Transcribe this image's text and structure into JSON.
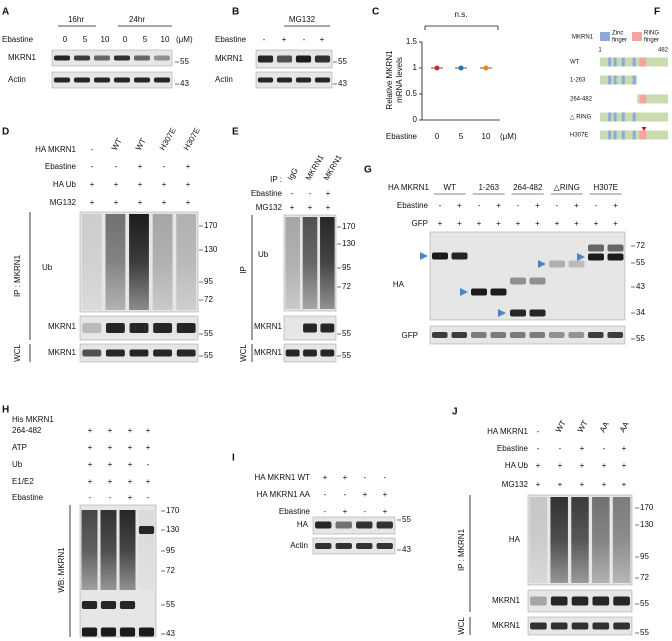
{
  "chart_data": {
    "type": "scatter",
    "letter": "C",
    "annotation": "n.s.",
    "y_label": [
      "Relative MKRN1",
      "mRNA levels"
    ],
    "x_label": "Ebastine",
    "x_unit": "(μM)",
    "categories": [
      "0",
      "5",
      "10"
    ],
    "values": [
      1,
      1,
      1
    ],
    "colors": [
      "#d62728",
      "#1f77b4",
      "#ff7f0e"
    ],
    "ylim": [
      0,
      1.5
    ],
    "yticks": [
      0,
      0.5,
      1,
      1.5
    ]
  },
  "panels": {
    "A": {
      "letter": "A",
      "groups": [
        "16hr",
        "24hr"
      ],
      "rows": [
        {
          "label": "Ebastine",
          "cells": [
            "0",
            "5",
            "10",
            "0",
            "5",
            "10"
          ]
        }
      ],
      "unit": "(μM)",
      "blots": [
        "MKRN1",
        "Actin"
      ],
      "markers": [
        "55",
        "43"
      ]
    },
    "B": {
      "letter": "B",
      "group": "MG132",
      "rows": [
        {
          "label": "Ebastine",
          "cells": [
            "-",
            "+",
            "-",
            "+"
          ]
        }
      ],
      "blots": [
        "MKRN1",
        "Actin"
      ],
      "markers": [
        "55",
        "43"
      ]
    },
    "D": {
      "letter": "D",
      "rows": [
        {
          "label": "HA MKRN1",
          "cells": [
            "-",
            "WT",
            "WT",
            "H307E",
            "H307E"
          ]
        },
        {
          "label": "Ebastine",
          "cells": [
            "-",
            "-",
            "+",
            "-",
            "+"
          ]
        },
        {
          "label": "HA Ub",
          "cells": [
            "+",
            "+",
            "+",
            "+",
            "+"
          ]
        },
        {
          "label": "MG132",
          "cells": [
            "+",
            "+",
            "+",
            "+",
            "+"
          ]
        }
      ],
      "blots": [
        "Ub",
        "MKRN1",
        "MKRN1"
      ],
      "sides": [
        "IP : MKRN1",
        "WCL"
      ],
      "markers": [
        "170",
        "130",
        "95",
        "72",
        "55",
        "55"
      ]
    },
    "E": {
      "letter": "E",
      "rows": [
        {
          "label": "IP :",
          "cells": [
            "IgG",
            "MKRN1",
            "MKRN1"
          ]
        },
        {
          "label": "Ebastine",
          "cells": [
            "-",
            "-",
            "+"
          ]
        },
        {
          "label": "MG132",
          "cells": [
            "+",
            "+",
            "+"
          ]
        }
      ],
      "blots": [
        "Ub",
        "MKRN1",
        "MKRN1"
      ],
      "sides": [
        "IP",
        "WCL"
      ],
      "markers": [
        "170",
        "130",
        "95",
        "72",
        "55",
        "55"
      ]
    },
    "F": {
      "letter": "F",
      "protein": "MKRN1",
      "legend": [
        [
          "Zinc",
          "finger"
        ],
        [
          "RING",
          "finger"
        ]
      ],
      "start": "1",
      "end": "482",
      "constructs": [
        "WT",
        "1-263",
        "264-482",
        "△ RING",
        "H307E"
      ]
    },
    "G": {
      "letter": "G",
      "header": "HA MKRN1",
      "groups": [
        "WT",
        "1-263",
        "264-482",
        "△RING",
        "H307E"
      ],
      "rows": [
        {
          "label": "Ebastine",
          "cells": [
            "-",
            "+",
            "-",
            "+",
            "-",
            "+",
            "-",
            "+",
            "-",
            "+"
          ]
        },
        {
          "label": "GFP",
          "cells": [
            "+",
            "+",
            "+",
            "+",
            "+",
            "+",
            "+",
            "+",
            "+",
            "+"
          ]
        }
      ],
      "blots": [
        "HA",
        "GFP"
      ],
      "markers": [
        "72",
        "55",
        "43",
        "34",
        "55"
      ]
    },
    "H": {
      "letter": "H",
      "protein": "His MKRN1",
      "rows": [
        {
          "label": "264-482",
          "cells": [
            "+",
            "+",
            "+",
            "+"
          ]
        },
        {
          "label": "ATP",
          "cells": [
            "+",
            "+",
            "+",
            "+"
          ]
        },
        {
          "label": "Ub",
          "cells": [
            "+",
            "+",
            "+",
            "-"
          ]
        },
        {
          "label": "E1/E2",
          "cells": [
            "+",
            "+",
            "+",
            "+"
          ]
        },
        {
          "label": "Ebastine",
          "cells": [
            "-",
            "-",
            "+",
            "-"
          ]
        }
      ],
      "side": "WB: MKRN1",
      "markers": [
        "170",
        "130",
        "95",
        "72",
        "55",
        "43"
      ]
    },
    "I": {
      "letter": "I",
      "rows": [
        {
          "label": "HA MKRN1 WT",
          "cells": [
            "+",
            "+",
            "-",
            "-"
          ]
        },
        {
          "label": "HA MKRN1 AA",
          "cells": [
            "-",
            "-",
            "+",
            "+"
          ]
        },
        {
          "label": "Ebastine",
          "cells": [
            "-",
            "+",
            "-",
            "+"
          ]
        }
      ],
      "blots": [
        "HA",
        "Actin"
      ],
      "markers": [
        "55",
        "43"
      ]
    },
    "J": {
      "letter": "J",
      "rows": [
        {
          "label": "HA MKRN1",
          "cells": [
            "-",
            "WT",
            "WT",
            "AA",
            "AA"
          ]
        },
        {
          "label": "Ebastine",
          "cells": [
            "-",
            "-",
            "+",
            "-",
            "+"
          ]
        },
        {
          "label": "HA Ub",
          "cells": [
            "+",
            "+",
            "+",
            "+",
            "+"
          ]
        },
        {
          "label": "MG132",
          "cells": [
            "+",
            "+",
            "+",
            "+",
            "+"
          ]
        }
      ],
      "blots": [
        "HA",
        "MKRN1",
        "MKRN1"
      ],
      "sides": [
        "IP : MKRN1",
        "WCL"
      ],
      "markers": [
        "170",
        "130",
        "95",
        "72",
        "55",
        "55"
      ]
    }
  }
}
